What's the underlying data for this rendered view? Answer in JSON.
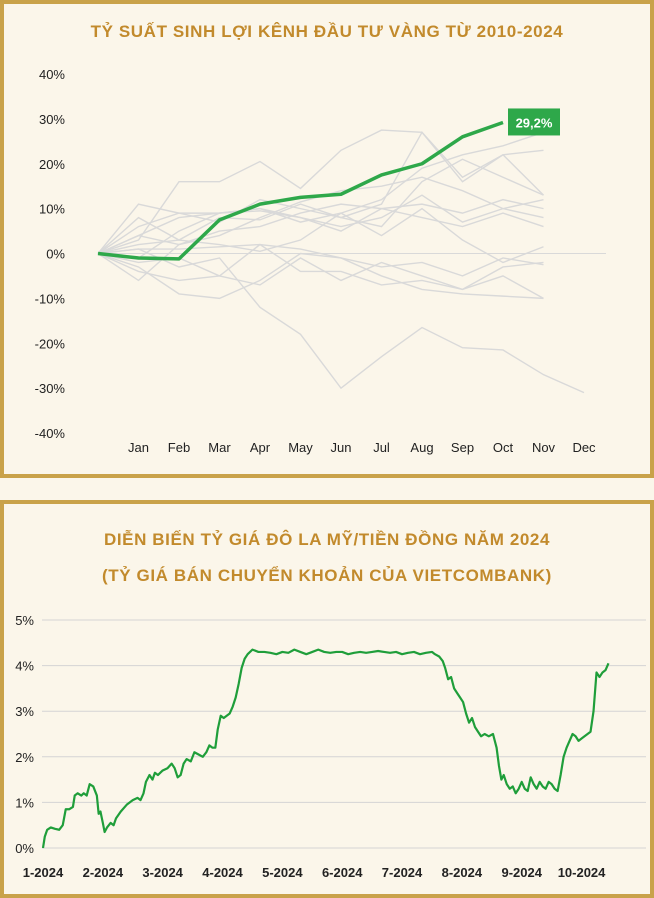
{
  "chart_data": [
    {
      "type": "line",
      "title": "TỶ SUẤT SINH LỢI KÊNH ĐẦU TƯ VÀNG TỪ 2010-2024",
      "x": [
        "",
        "Jan",
        "Feb",
        "Mar",
        "Apr",
        "May",
        "Jun",
        "Jul",
        "Aug",
        "Sep",
        "Oct",
        "Nov",
        "Dec"
      ],
      "yticks": [
        "40%",
        "30%",
        "20%",
        "10%",
        "0%",
        "-10%",
        "-20%",
        "-30%",
        "-40%"
      ],
      "ylim": [
        -40,
        40
      ],
      "grid": false,
      "highlight_color": "#2ea84a",
      "background_series_color": "#d9d9d9",
      "highlight_series": {
        "values": [
          0,
          -1,
          -1.2,
          7.5,
          11,
          12.5,
          13.2,
          17.5,
          20,
          26,
          29.2
        ],
        "end_label": "29,2%"
      },
      "background_series": [
        [
          0,
          11,
          9,
          9,
          10,
          7,
          9,
          12,
          19,
          22,
          24,
          27
        ],
        [
          0,
          3,
          16,
          16,
          20.5,
          14.5,
          23,
          27.5,
          27,
          17,
          22,
          23
        ],
        [
          0,
          8,
          3,
          8,
          7.5,
          11,
          8,
          11,
          27,
          16,
          22,
          13
        ],
        [
          0,
          6,
          9,
          7,
          12,
          10,
          8,
          6,
          16,
          21,
          17,
          13
        ],
        [
          0,
          -6,
          2,
          4,
          8,
          11.5,
          14,
          15,
          17,
          14,
          10,
          8
        ],
        [
          0,
          4,
          2,
          5,
          6,
          9,
          11,
          10,
          11,
          9,
          12,
          10
        ],
        [
          0,
          2,
          3,
          2,
          0.5,
          3,
          9,
          4,
          10,
          3,
          -2,
          1.5
        ],
        [
          0,
          1,
          1,
          1.5,
          2,
          1,
          -1,
          -3,
          -2,
          -5,
          -1,
          -2.5
        ],
        [
          0,
          -2,
          -1,
          -5,
          -7,
          -1,
          -6,
          -2,
          -5,
          -8,
          -3,
          -2
        ],
        [
          0,
          -4,
          -6,
          -5,
          2,
          -4,
          -4,
          -7,
          -6,
          -8,
          -5,
          -10
        ],
        [
          0,
          -3,
          -9,
          -10,
          -6,
          0,
          -1,
          -5,
          -8,
          -9,
          -9.5,
          -10
        ],
        [
          0,
          1,
          -3,
          -1,
          -12,
          -18,
          -30,
          -23,
          -16.5,
          -21,
          -21.5,
          -27,
          -31
        ],
        [
          0,
          4,
          8,
          9,
          9.5,
          8,
          6,
          8,
          13,
          7,
          10,
          12
        ],
        [
          0,
          -1,
          5,
          9,
          10,
          8,
          5,
          10,
          8,
          6,
          9,
          6
        ]
      ]
    },
    {
      "type": "line",
      "title": "DIỄN BIẾN TỶ GIÁ ĐÔ LA MỸ/TIỀN ĐỒNG NĂM 2024",
      "subtitle": "(TỶ GIÁ BÁN CHUYỂN KHOẢN CỦA VIETCOMBANK)",
      "x_ticks": [
        "1-2024",
        "2-2024",
        "3-2024",
        "4-2024",
        "5-2024",
        "6-2024",
        "7-2024",
        "8-2024",
        "9-2024",
        "10-2024"
      ],
      "yticks": [
        "5%",
        "4%",
        "3%",
        "2%",
        "1%",
        "0%"
      ],
      "ylim": [
        0,
        5
      ],
      "xlim": [
        0,
        9.96
      ],
      "grid": true,
      "line_color": "#1f9e3a",
      "points": [
        [
          0,
          0
        ],
        [
          0.03,
          0.25
        ],
        [
          0.07,
          0.4
        ],
        [
          0.13,
          0.45
        ],
        [
          0.2,
          0.42
        ],
        [
          0.27,
          0.4
        ],
        [
          0.33,
          0.5
        ],
        [
          0.38,
          0.85
        ],
        [
          0.44,
          0.85
        ],
        [
          0.5,
          0.9
        ],
        [
          0.53,
          1.15
        ],
        [
          0.58,
          1.2
        ],
        [
          0.64,
          1.15
        ],
        [
          0.68,
          1.2
        ],
        [
          0.73,
          1.15
        ],
        [
          0.78,
          1.4
        ],
        [
          0.84,
          1.35
        ],
        [
          0.9,
          1.15
        ],
        [
          0.93,
          0.75
        ],
        [
          0.96,
          0.8
        ],
        [
          1.0,
          0.55
        ],
        [
          1.03,
          0.35
        ],
        [
          1.07,
          0.45
        ],
        [
          1.13,
          0.55
        ],
        [
          1.18,
          0.5
        ],
        [
          1.22,
          0.65
        ],
        [
          1.3,
          0.8
        ],
        [
          1.4,
          0.95
        ],
        [
          1.5,
          1.05
        ],
        [
          1.58,
          1.1
        ],
        [
          1.63,
          1.05
        ],
        [
          1.68,
          1.2
        ],
        [
          1.72,
          1.45
        ],
        [
          1.78,
          1.6
        ],
        [
          1.83,
          1.5
        ],
        [
          1.87,
          1.65
        ],
        [
          1.92,
          1.6
        ],
        [
          2.0,
          1.7
        ],
        [
          2.08,
          1.75
        ],
        [
          2.15,
          1.85
        ],
        [
          2.2,
          1.75
        ],
        [
          2.25,
          1.55
        ],
        [
          2.3,
          1.6
        ],
        [
          2.35,
          1.85
        ],
        [
          2.4,
          1.95
        ],
        [
          2.47,
          1.9
        ],
        [
          2.53,
          2.1
        ],
        [
          2.6,
          2.05
        ],
        [
          2.67,
          2.0
        ],
        [
          2.73,
          2.1
        ],
        [
          2.78,
          2.25
        ],
        [
          2.83,
          2.2
        ],
        [
          2.88,
          2.2
        ],
        [
          2.92,
          2.6
        ],
        [
          2.97,
          2.9
        ],
        [
          3.02,
          2.85
        ],
        [
          3.07,
          2.9
        ],
        [
          3.12,
          2.95
        ],
        [
          3.17,
          3.1
        ],
        [
          3.22,
          3.3
        ],
        [
          3.27,
          3.6
        ],
        [
          3.32,
          3.95
        ],
        [
          3.37,
          4.15
        ],
        [
          3.42,
          4.25
        ],
        [
          3.5,
          4.35
        ],
        [
          3.6,
          4.3
        ],
        [
          3.7,
          4.3
        ],
        [
          3.8,
          4.28
        ],
        [
          3.9,
          4.25
        ],
        [
          4.0,
          4.3
        ],
        [
          4.1,
          4.28
        ],
        [
          4.2,
          4.35
        ],
        [
          4.3,
          4.3
        ],
        [
          4.4,
          4.25
        ],
        [
          4.5,
          4.3
        ],
        [
          4.6,
          4.35
        ],
        [
          4.7,
          4.3
        ],
        [
          4.8,
          4.28
        ],
        [
          4.9,
          4.3
        ],
        [
          5.0,
          4.3
        ],
        [
          5.1,
          4.25
        ],
        [
          5.2,
          4.28
        ],
        [
          5.3,
          4.3
        ],
        [
          5.4,
          4.28
        ],
        [
          5.5,
          4.3
        ],
        [
          5.6,
          4.32
        ],
        [
          5.7,
          4.3
        ],
        [
          5.8,
          4.28
        ],
        [
          5.9,
          4.3
        ],
        [
          6.0,
          4.25
        ],
        [
          6.1,
          4.28
        ],
        [
          6.2,
          4.3
        ],
        [
          6.3,
          4.25
        ],
        [
          6.4,
          4.28
        ],
        [
          6.5,
          4.3
        ],
        [
          6.55,
          4.25
        ],
        [
          6.62,
          4.2
        ],
        [
          6.68,
          4.1
        ],
        [
          6.72,
          3.95
        ],
        [
          6.77,
          3.7
        ],
        [
          6.82,
          3.75
        ],
        [
          6.87,
          3.5
        ],
        [
          6.92,
          3.4
        ],
        [
          6.97,
          3.3
        ],
        [
          7.02,
          3.2
        ],
        [
          7.07,
          2.95
        ],
        [
          7.12,
          2.75
        ],
        [
          7.17,
          2.85
        ],
        [
          7.22,
          2.65
        ],
        [
          7.27,
          2.55
        ],
        [
          7.32,
          2.45
        ],
        [
          7.38,
          2.5
        ],
        [
          7.45,
          2.45
        ],
        [
          7.52,
          2.5
        ],
        [
          7.58,
          2.2
        ],
        [
          7.62,
          1.8
        ],
        [
          7.66,
          1.5
        ],
        [
          7.7,
          1.6
        ],
        [
          7.75,
          1.4
        ],
        [
          7.8,
          1.3
        ],
        [
          7.85,
          1.35
        ],
        [
          7.9,
          1.2
        ],
        [
          7.95,
          1.3
        ],
        [
          8.0,
          1.45
        ],
        [
          8.05,
          1.3
        ],
        [
          8.1,
          1.25
        ],
        [
          8.15,
          1.55
        ],
        [
          8.2,
          1.4
        ],
        [
          8.25,
          1.3
        ],
        [
          8.3,
          1.45
        ],
        [
          8.35,
          1.35
        ],
        [
          8.4,
          1.3
        ],
        [
          8.45,
          1.45
        ],
        [
          8.5,
          1.4
        ],
        [
          8.55,
          1.3
        ],
        [
          8.6,
          1.25
        ],
        [
          8.65,
          1.6
        ],
        [
          8.7,
          2.0
        ],
        [
          8.75,
          2.2
        ],
        [
          8.8,
          2.35
        ],
        [
          8.85,
          2.5
        ],
        [
          8.9,
          2.45
        ],
        [
          8.95,
          2.35
        ],
        [
          9.0,
          2.4
        ],
        [
          9.05,
          2.45
        ],
        [
          9.1,
          2.5
        ],
        [
          9.15,
          2.55
        ],
        [
          9.2,
          3.0
        ],
        [
          9.25,
          3.85
        ],
        [
          9.3,
          3.75
        ],
        [
          9.35,
          3.85
        ],
        [
          9.4,
          3.9
        ],
        [
          9.45,
          4.05
        ]
      ]
    }
  ]
}
